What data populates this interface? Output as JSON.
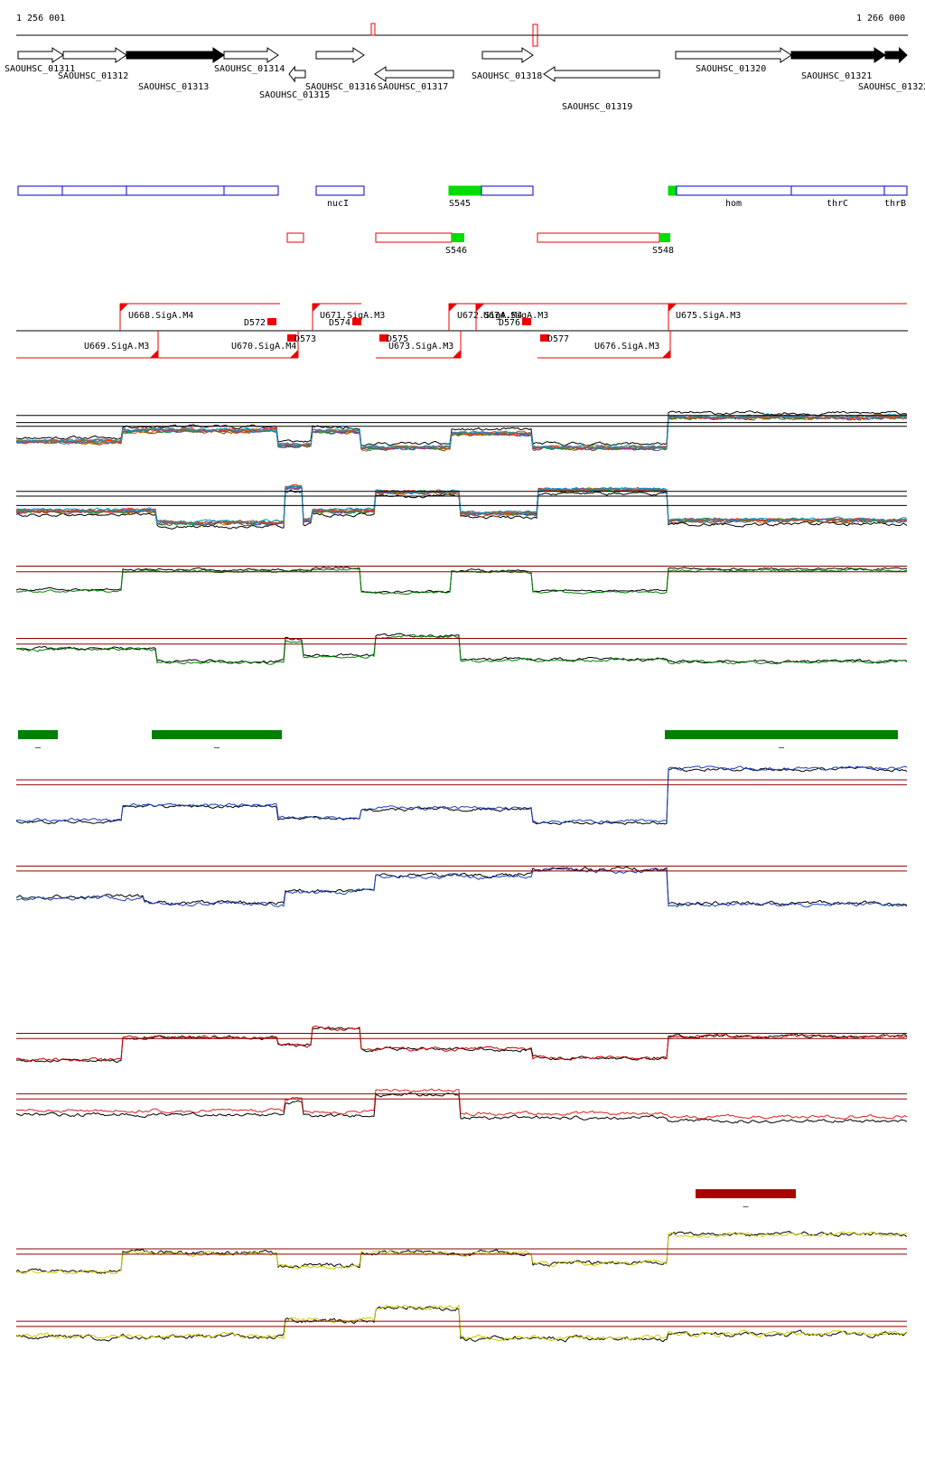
{
  "coords": {
    "start": "1 256 001",
    "end": "1 266 000"
  },
  "genes": [
    {
      "label": "SAOUHSC_01311",
      "strand": "+",
      "filled": false
    },
    {
      "label": "SAOUHSC_01312",
      "strand": "+",
      "filled": false
    },
    {
      "label": "SAOUHSC_01313",
      "strand": "+",
      "filled": true
    },
    {
      "label": "SAOUHSC_01314",
      "strand": "+",
      "filled": false
    },
    {
      "label": "SAOUHSC_01315",
      "strand": "-",
      "filled": false
    },
    {
      "label": "SAOUHSC_01316",
      "strand": "+",
      "filled": false
    },
    {
      "label": "SAOUHSC_01317",
      "strand": "-",
      "filled": false
    },
    {
      "label": "SAOUHSC_01318",
      "strand": "+",
      "filled": false
    },
    {
      "label": "SAOUHSC_01319",
      "strand": "-",
      "filled": false
    },
    {
      "label": "SAOUHSC_01320",
      "strand": "+",
      "filled": false
    },
    {
      "label": "SAOUHSC_01321",
      "strand": "+",
      "filled": true
    },
    {
      "label": "SAOUHSC_01322",
      "strand": "+",
      "filled": true
    }
  ],
  "plus_features": [
    {
      "label": ""
    },
    {
      "label": ""
    },
    {
      "label": ""
    },
    {
      "label": ""
    },
    {
      "label": "nucI"
    },
    {
      "label": "S545"
    },
    {
      "label": ""
    },
    {
      "label": ""
    },
    {
      "label": "hom"
    },
    {
      "label": "thrC"
    },
    {
      "label": "thrB"
    }
  ],
  "minus_features": [
    {
      "label": ""
    },
    {
      "label": "S546"
    },
    {
      "label": "S548"
    }
  ],
  "tus": [
    {
      "label": "U668.SigA.M4",
      "strand": "+"
    },
    {
      "label": "U669.SigA.M3",
      "strand": "-"
    },
    {
      "label": "U670.SigA.M4",
      "strand": "-"
    },
    {
      "label": "U671.SigA.M3",
      "strand": "+"
    },
    {
      "label": "U672.SigA.M4",
      "strand": "+"
    },
    {
      "label": "U673.SigA.M3",
      "strand": "-"
    },
    {
      "label": "U674.SigA.M3",
      "strand": "+"
    },
    {
      "label": "U675.SigA.M3",
      "strand": "+"
    },
    {
      "label": "U676.SigA.M3",
      "strand": "-"
    }
  ],
  "down_marks": [
    {
      "label": "D572"
    },
    {
      "label": "D573"
    },
    {
      "label": "D574"
    },
    {
      "label": "D575"
    },
    {
      "label": "D576"
    },
    {
      "label": "D577"
    }
  ],
  "sig_bars_green": [
    {
      "label": "–"
    },
    {
      "label": "–"
    },
    {
      "label": "–"
    }
  ],
  "sig_bars_red": [
    {
      "label": "–"
    }
  ],
  "tracks": [
    {
      "name": "all-conditions-plus",
      "colors": [
        "#000000",
        "#7a3b00",
        "#cc6600",
        "#3366cc",
        "#009933",
        "#993399",
        "#ff3300",
        "#996633",
        "#0099cc"
      ]
    },
    {
      "name": "all-conditions-minus",
      "colors": [
        "#000000",
        "#7a3b00",
        "#cc6600",
        "#3366cc",
        "#009933",
        "#993399",
        "#ff3300",
        "#996633",
        "#0099cc"
      ]
    },
    {
      "name": "green-plus",
      "colors": [
        "#000000",
        "#008000"
      ]
    },
    {
      "name": "green-minus",
      "colors": [
        "#000000",
        "#008000"
      ]
    },
    {
      "name": "blue-plus",
      "colors": [
        "#000000",
        "#1a3fbf"
      ]
    },
    {
      "name": "blue-minus",
      "colors": [
        "#000000",
        "#1a3fbf"
      ]
    },
    {
      "name": "red-plus",
      "colors": [
        "#000000",
        "#cc0000"
      ]
    },
    {
      "name": "red-minus",
      "colors": [
        "#000000",
        "#e02020"
      ]
    },
    {
      "name": "yellow-plus",
      "colors": [
        "#000000",
        "#cccc00"
      ]
    },
    {
      "name": "yellow-minus",
      "colors": [
        "#000000",
        "#cccc00"
      ]
    }
  ],
  "colors": {
    "tu_red": "#ee0000",
    "feature_blue": "#0000cc",
    "feature_green": "#00dd00",
    "sig_green": "#008000",
    "sig_red": "#aa0000",
    "threshold": "#8b0000"
  }
}
